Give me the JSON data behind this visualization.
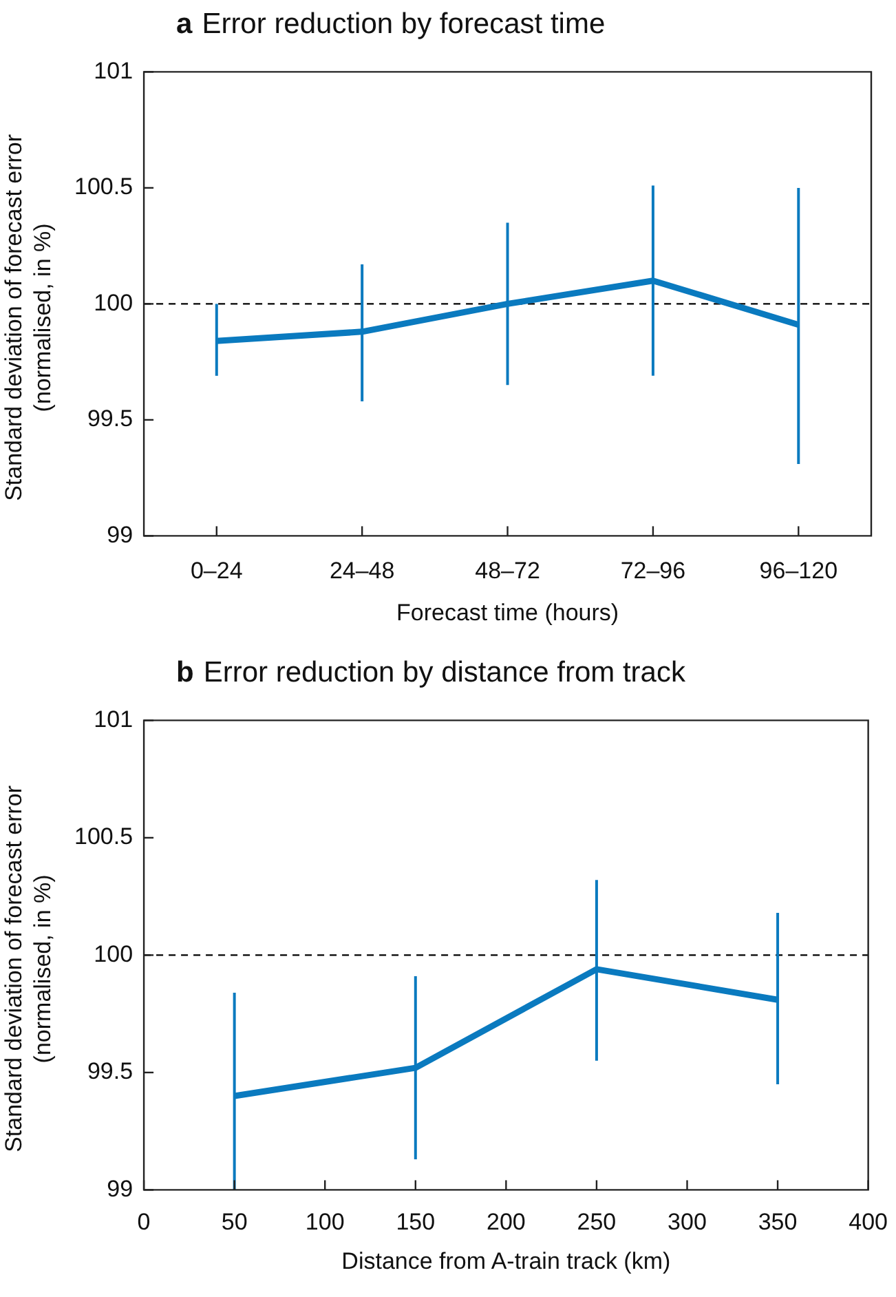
{
  "chart_data": [
    {
      "type": "line",
      "title": "a Error reduction by forecast time",
      "xlabel": "Forecast time (hours)",
      "ylabel": "Standard deviation of forecast error (normalised, in %)",
      "categories": [
        "0–24",
        "24–48",
        "48–72",
        "72–96",
        "96–120"
      ],
      "series": [
        {
          "color": "#0a7abf",
          "values": [
            99.84,
            99.88,
            100.0,
            100.1,
            99.91
          ],
          "errors": [
            [
              99.69,
              100.0
            ],
            [
              99.58,
              100.17
            ],
            [
              99.65,
              100.35
            ],
            [
              99.69,
              100.51
            ],
            [
              99.31,
              100.5
            ]
          ]
        }
      ],
      "ylim": [
        99,
        101
      ],
      "yticks": [
        99,
        99.5,
        100,
        100.5,
        101
      ],
      "ref_lines": [
        {
          "axis": "y",
          "value": 100,
          "line_style": "dashed",
          "color": "#000000"
        }
      ],
      "legend": false,
      "marker": "none",
      "line_style": "solid"
    },
    {
      "type": "line",
      "title": "b Error reduction by distance from track",
      "xlabel": "Distance from A-train track (km)",
      "ylabel": "Standard deviation of forecast error (normalised, in %)",
      "x": [
        50,
        150,
        250,
        350
      ],
      "series": [
        {
          "color": "#0a7abf",
          "values": [
            99.4,
            99.52,
            99.94,
            99.81
          ],
          "errors": [
            [
              99.0,
              99.84
            ],
            [
              99.13,
              99.91
            ],
            [
              99.55,
              100.32
            ],
            [
              99.45,
              100.18
            ]
          ]
        }
      ],
      "xlim": [
        0,
        400
      ],
      "xticks": [
        0,
        50,
        100,
        150,
        200,
        250,
        300,
        350,
        400
      ],
      "ylim": [
        99,
        101
      ],
      "yticks": [
        99,
        99.5,
        100,
        100.5,
        101
      ],
      "ref_lines": [
        {
          "axis": "y",
          "value": 100,
          "line_style": "dashed",
          "color": "#000000"
        }
      ],
      "legend": false,
      "marker": "none",
      "line_style": "solid"
    }
  ]
}
